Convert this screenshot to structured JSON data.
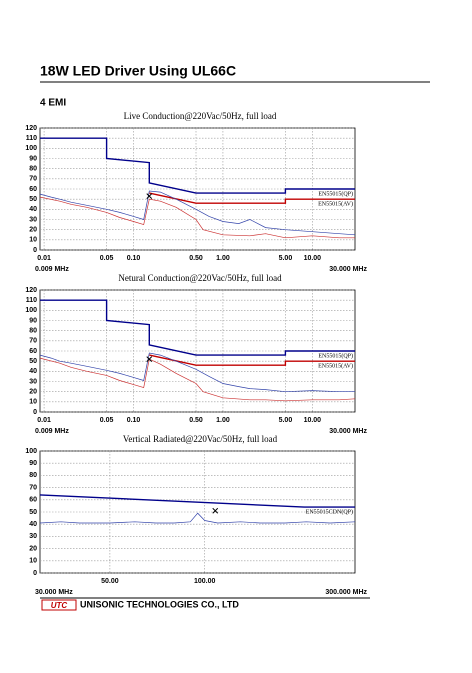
{
  "header": {
    "title": "18W LED Driver Using UL66C"
  },
  "section": {
    "title": "4 EMI"
  },
  "chart_data": [
    {
      "type": "line",
      "title": "Live Conduction@220Vac/50Hz, full load",
      "x_scale": "log",
      "xlim": [
        0.009,
        30
      ],
      "ylim": [
        0,
        120
      ],
      "xticks": [
        0.01,
        0.05,
        {
          "value": 0.1,
          "label": "0.10"
        },
        {
          "value": 0.5,
          "label": "0.50"
        },
        {
          "value": 1,
          "label": "1.00"
        },
        {
          "value": 5,
          "label": "5.00"
        },
        {
          "value": 10,
          "label": "10.00"
        }
      ],
      "yticks": [
        0,
        10,
        20,
        30,
        40,
        50,
        60,
        70,
        80,
        90,
        100,
        110,
        120
      ],
      "x_start_label": "0.009 MHz",
      "x_end_label": "30.000 MHz",
      "grid": true,
      "series": [
        {
          "name": "EN55015(QP)",
          "color": "#00008b",
          "x": [
            0.009,
            0.05,
            0.05,
            0.15,
            0.15,
            0.5,
            5,
            5,
            30
          ],
          "values": [
            110,
            110,
            90,
            86,
            66,
            56,
            56,
            60,
            60
          ]
        },
        {
          "name": "EN55015(AV)",
          "color": "#c00000",
          "x": [
            0.15,
            0.5,
            5,
            5,
            30
          ],
          "values": [
            56,
            46,
            46,
            50,
            50
          ]
        },
        {
          "color": "#3344aa",
          "x": [
            0.009,
            0.012,
            0.015,
            0.02,
            0.03,
            0.05,
            0.07,
            0.1,
            0.13,
            0.15,
            0.2,
            0.3,
            0.5,
            0.7,
            1,
            1.5,
            2,
            3,
            5,
            10,
            20,
            30
          ],
          "values": [
            55,
            52,
            50,
            47,
            44,
            40,
            37,
            33,
            30,
            58,
            57,
            50,
            40,
            33,
            28,
            26,
            30,
            22,
            20,
            18,
            16,
            15
          ]
        },
        {
          "color": "#cc3333",
          "x": [
            0.009,
            0.015,
            0.02,
            0.03,
            0.05,
            0.07,
            0.1,
            0.13,
            0.15,
            0.2,
            0.3,
            0.5,
            0.6,
            1,
            2,
            3,
            5,
            10,
            20,
            30
          ],
          "values": [
            52,
            48,
            45,
            42,
            37,
            32,
            28,
            25,
            50,
            48,
            42,
            30,
            20,
            15,
            14,
            16,
            12,
            14,
            12,
            12
          ]
        }
      ],
      "marker": {
        "x": 0.15,
        "y": 53
      }
    },
    {
      "type": "line",
      "title": "Netural Conduction@220Vac/50Hz, full load",
      "x_scale": "log",
      "xlim": [
        0.009,
        30
      ],
      "ylim": [
        0,
        120
      ],
      "xticks": [
        0.01,
        0.05,
        {
          "value": 0.1,
          "label": "0.10"
        },
        {
          "value": 0.5,
          "label": "0.50"
        },
        {
          "value": 1,
          "label": "1.00"
        },
        {
          "value": 5,
          "label": "5.00"
        },
        {
          "value": 10,
          "label": "10.00"
        }
      ],
      "yticks": [
        0,
        10,
        20,
        30,
        40,
        50,
        60,
        70,
        80,
        90,
        100,
        110,
        120
      ],
      "x_start_label": "0.009 MHz",
      "x_end_label": "30.000 MHz",
      "grid": true,
      "series": [
        {
          "name": "EN55015(QP)",
          "color": "#00008b",
          "x": [
            0.009,
            0.05,
            0.05,
            0.15,
            0.15,
            0.5,
            5,
            5,
            30
          ],
          "values": [
            110,
            110,
            90,
            86,
            66,
            56,
            56,
            60,
            60
          ]
        },
        {
          "name": "EN55015(AV)",
          "color": "#c00000",
          "x": [
            0.15,
            0.5,
            5,
            5,
            30
          ],
          "values": [
            56,
            46,
            46,
            50,
            50
          ]
        },
        {
          "color": "#3344aa",
          "x": [
            0.009,
            0.012,
            0.015,
            0.02,
            0.03,
            0.05,
            0.07,
            0.1,
            0.13,
            0.15,
            0.2,
            0.3,
            0.5,
            0.7,
            1,
            1.5,
            2,
            3,
            5,
            10,
            20,
            30
          ],
          "values": [
            56,
            53,
            50,
            48,
            45,
            41,
            38,
            34,
            31,
            58,
            56,
            50,
            42,
            35,
            28,
            25,
            23,
            22,
            20,
            21,
            20,
            20
          ]
        },
        {
          "color": "#cc3333",
          "x": [
            0.009,
            0.015,
            0.02,
            0.03,
            0.05,
            0.07,
            0.1,
            0.13,
            0.15,
            0.2,
            0.3,
            0.5,
            0.6,
            1,
            2,
            3,
            5,
            10,
            20,
            30
          ],
          "values": [
            53,
            48,
            44,
            40,
            36,
            31,
            27,
            24,
            52,
            47,
            38,
            28,
            20,
            14,
            12,
            12,
            11,
            12,
            12,
            13
          ]
        }
      ],
      "marker": {
        "x": 0.15,
        "y": 52
      }
    },
    {
      "type": "line",
      "title": "Vertical Radiated@220Vac/50Hz, full load",
      "x_scale": "log",
      "xlim": [
        30,
        300
      ],
      "ylim": [
        0,
        100
      ],
      "xticks": [
        {
          "value": 50,
          "label": "50.00"
        },
        {
          "value": 100,
          "label": "100.00"
        }
      ],
      "yticks": [
        0,
        10,
        20,
        30,
        40,
        50,
        60,
        70,
        80,
        90,
        100
      ],
      "x_start_label": "30.000 MHz",
      "x_end_label": "300.000 MHz",
      "grid": true,
      "series": [
        {
          "name": "EN55015CDN(QP)",
          "color": "#00008b",
          "x": [
            30,
            207,
            300
          ],
          "values": [
            64,
            54,
            54
          ]
        },
        {
          "color": "#3344aa",
          "x": [
            30,
            35,
            40,
            50,
            60,
            70,
            80,
            90,
            95,
            100,
            110,
            130,
            150,
            180,
            210,
            250,
            300
          ],
          "values": [
            41,
            42,
            41,
            41,
            42,
            41,
            41,
            42,
            49,
            43,
            41,
            42,
            41,
            41,
            42,
            41,
            42
          ]
        }
      ],
      "marker": {
        "x": 108,
        "y": 51
      }
    }
  ],
  "footer": {
    "logo": "UTC",
    "company": "UNISONIC TECHNOLOGIES CO., LTD"
  }
}
